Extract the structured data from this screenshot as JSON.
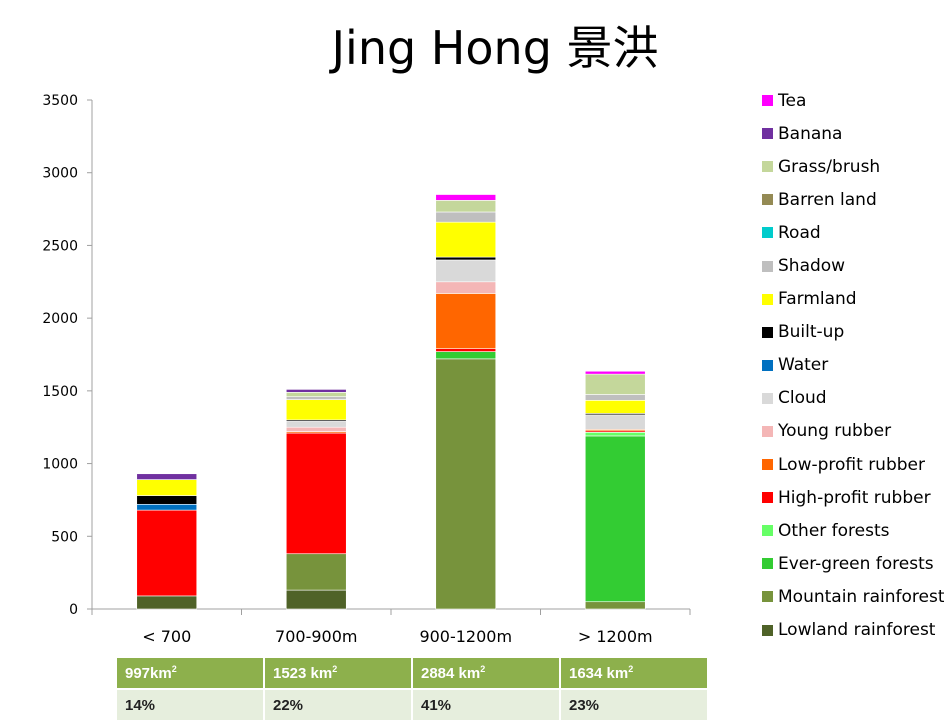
{
  "chart_data": {
    "type": "bar",
    "stacked": true,
    "title": "Jing Hong 景洪",
    "categories": [
      "< 700",
      "700-900m",
      "900-1200m",
      "> 1200m"
    ],
    "ylim": [
      0,
      3500
    ],
    "yticks": [
      0,
      500,
      1000,
      1500,
      2000,
      2500,
      3000,
      3500
    ],
    "grid": false,
    "legend_position": "right",
    "series": [
      {
        "name": "Lowland rainforest",
        "color": "#4f6228",
        "values": [
          90,
          130,
          0,
          0
        ]
      },
      {
        "name": "Mountain rainforest",
        "color": "#77933c",
        "values": [
          0,
          250,
          1720,
          50
        ]
      },
      {
        "name": "Ever-green forests",
        "color": "#33cc33",
        "values": [
          0,
          0,
          50,
          1140
        ]
      },
      {
        "name": "Other forests",
        "color": "#66ff66",
        "values": [
          0,
          0,
          0,
          25
        ]
      },
      {
        "name": "High-profit rubber",
        "color": "#ff0000",
        "values": [
          590,
          830,
          20,
          10
        ]
      },
      {
        "name": "Low-profit rubber",
        "color": "#ff6600",
        "values": [
          0,
          10,
          380,
          10
        ]
      },
      {
        "name": "Young rubber",
        "color": "#f4b6b6",
        "values": [
          0,
          30,
          80,
          0
        ]
      },
      {
        "name": "Cloud",
        "color": "#d9d9d9",
        "values": [
          0,
          40,
          150,
          100
        ]
      },
      {
        "name": "Water",
        "color": "#0070c0",
        "values": [
          40,
          0,
          0,
          0
        ]
      },
      {
        "name": "Built-up",
        "color": "#000000",
        "values": [
          60,
          10,
          20,
          10
        ]
      },
      {
        "name": "Farmland",
        "color": "#ffff00",
        "values": [
          110,
          140,
          240,
          90
        ]
      },
      {
        "name": "Shadow",
        "color": "#bfbfbf",
        "values": [
          0,
          20,
          70,
          40
        ]
      },
      {
        "name": "Road",
        "color": "#00cccc",
        "values": [
          0,
          0,
          0,
          0
        ]
      },
      {
        "name": "Barren land",
        "color": "#948a54",
        "values": [
          0,
          0,
          0,
          0
        ]
      },
      {
        "name": "Grass/brush",
        "color": "#c4d79b",
        "values": [
          0,
          30,
          80,
          140
        ]
      },
      {
        "name": "Banana",
        "color": "#7030a0",
        "values": [
          40,
          20,
          0,
          0
        ]
      },
      {
        "name": "Tea",
        "color": "#ff00ff",
        "values": [
          0,
          0,
          40,
          20
        ]
      }
    ]
  },
  "table": {
    "areas": [
      {
        "num": "997km",
        "sup": "2"
      },
      {
        "num": "1523 km",
        "sup": "2"
      },
      {
        "num": "2884 km",
        "sup": "2"
      },
      {
        "num": "1634 km",
        "sup": "2"
      }
    ],
    "percents": [
      "14%",
      "22%",
      "41%",
      "23%"
    ]
  }
}
